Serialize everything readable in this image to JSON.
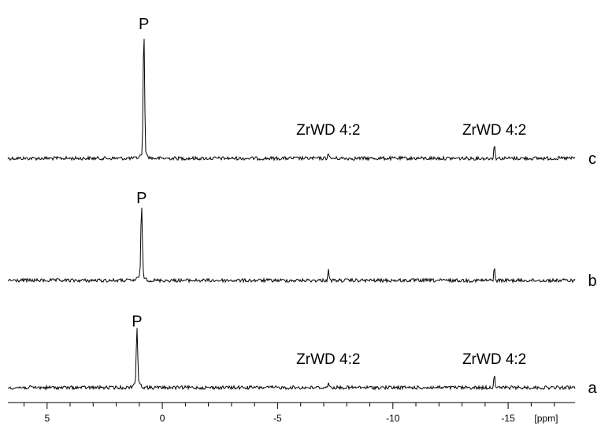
{
  "chart_data": {
    "type": "line",
    "title": "",
    "xlabel": "[ppm]",
    "ylabel": "",
    "xlim": [
      6.7,
      -17.9
    ],
    "x_reversed": true,
    "grid": false,
    "x_ticks": [
      {
        "value": 5,
        "label": "5"
      },
      {
        "value": 0,
        "label": "0"
      },
      {
        "value": -5,
        "label": "-5"
      },
      {
        "value": -10,
        "label": "-10"
      },
      {
        "value": -15,
        "label": "-15"
      }
    ],
    "series": [
      {
        "name": "c",
        "peaks": [
          {
            "x": 0.8,
            "height": 1.0
          },
          {
            "x": -7.2,
            "height": 0.05
          },
          {
            "x": -14.4,
            "height": 0.12
          }
        ],
        "annotations": [
          {
            "x": 0.8,
            "text": "P"
          },
          {
            "x": -7.2,
            "text": "ZrWD 4:2"
          },
          {
            "x": -14.4,
            "text": "ZrWD 4:2"
          }
        ]
      },
      {
        "name": "b",
        "peaks": [
          {
            "x": 0.9,
            "height": 0.58
          },
          {
            "x": -7.2,
            "height": 0.1
          },
          {
            "x": -14.4,
            "height": 0.1
          }
        ],
        "annotations": [
          {
            "x": 0.9,
            "text": "P"
          }
        ]
      },
      {
        "name": "a",
        "peaks": [
          {
            "x": 1.1,
            "height": 0.45
          },
          {
            "x": -7.2,
            "height": 0.05
          },
          {
            "x": -14.4,
            "height": 0.12
          }
        ],
        "annotations": [
          {
            "x": 1.1,
            "text": "P"
          },
          {
            "x": -7.2,
            "text": "ZrWD 4:2"
          },
          {
            "x": -14.4,
            "text": "ZrWD 4:2"
          }
        ]
      }
    ]
  }
}
